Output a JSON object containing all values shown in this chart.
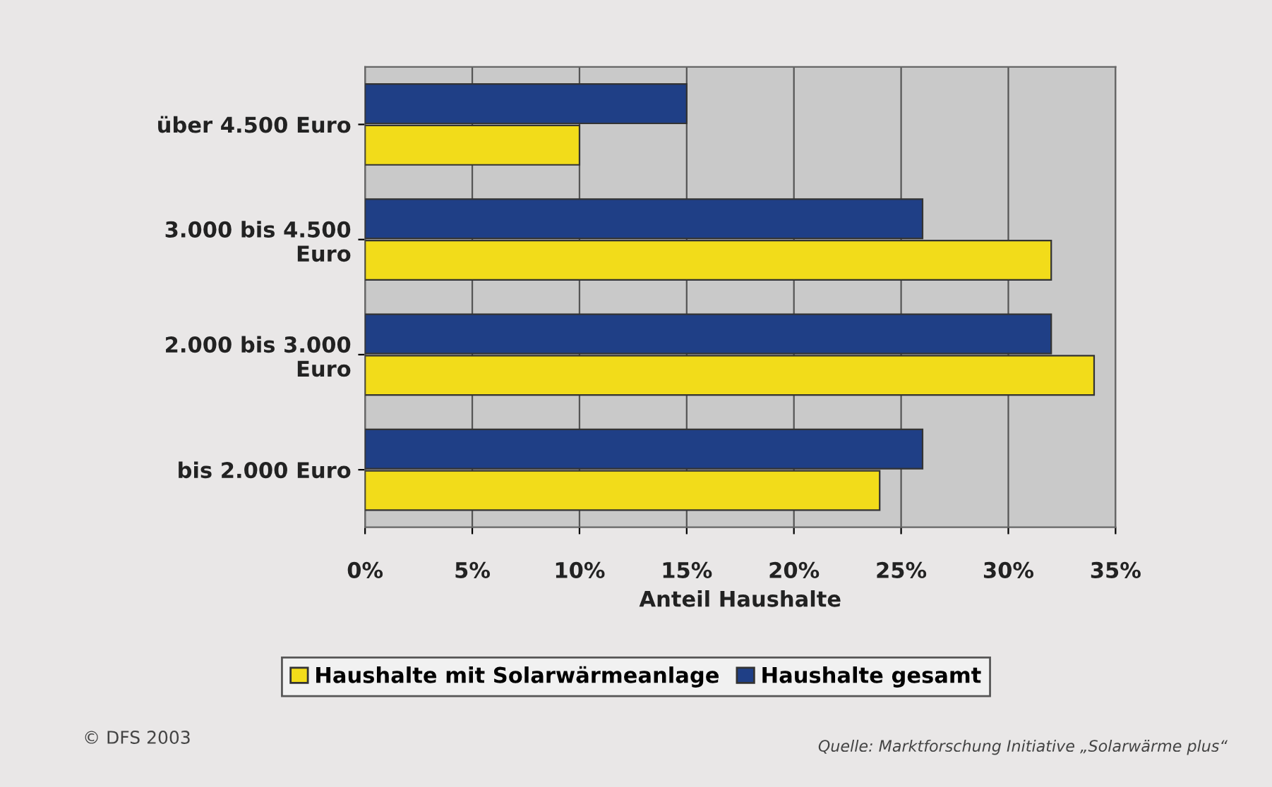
{
  "chart_data": {
    "type": "bar",
    "orientation": "horizontal",
    "xlabel": "Anteil Haushalte",
    "categories": [
      "über 4.500 Euro",
      "3.000 bis 4.500 Euro",
      "2.000 bis 3.000 Euro",
      "bis 2.000 Euro"
    ],
    "series": [
      {
        "name": "Haushalte mit Solarwärmeanlage",
        "color": "#f2dc1a",
        "values": [
          10,
          32,
          34,
          24
        ]
      },
      {
        "name": "Haushalte gesamt",
        "color": "#1f3f86",
        "values": [
          15,
          26,
          32,
          26
        ]
      }
    ],
    "xlim": [
      0,
      35
    ],
    "xticks": [
      {
        "value": 0,
        "label": "0%"
      },
      {
        "value": 5,
        "label": "5%"
      },
      {
        "value": 10,
        "label": "10%"
      },
      {
        "value": 15,
        "label": "15%"
      },
      {
        "value": 20,
        "label": "20%"
      },
      {
        "value": 25,
        "label": "25%"
      },
      {
        "value": 30,
        "label": "30%"
      },
      {
        "value": 35,
        "label": "35%"
      }
    ],
    "grid": "x",
    "legend": "bottom",
    "annotations": [
      "© DFS 2003",
      "Quelle: Marktforschung Initiative „Solarwärme plus“"
    ]
  }
}
